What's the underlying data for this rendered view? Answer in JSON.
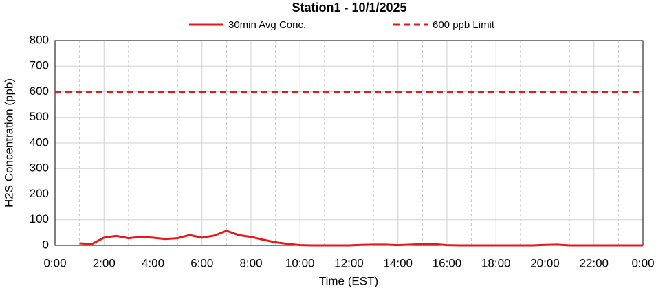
{
  "chart_data": {
    "type": "line",
    "title": "Station1  - 10/1/2025",
    "x_label": "Time (EST)",
    "y_label": "H2S Concentration (ppb)",
    "series": [
      {
        "name": "30min Avg Conc.",
        "color": "#e31a1c",
        "line_style": "solid",
        "x": [
          1,
          1.5,
          2,
          2.5,
          3,
          3.5,
          4,
          4.5,
          5,
          5.5,
          6,
          6.5,
          7,
          7.5,
          8,
          8.5,
          9,
          9.5,
          10,
          10.5,
          11,
          11.5,
          12,
          12.5,
          13,
          13.5,
          14,
          14.5,
          15,
          15.5,
          16,
          16.5,
          17,
          17.5,
          18,
          18.5,
          19,
          19.5,
          20,
          20.5,
          21,
          21.5,
          22,
          22.5,
          23,
          23.5,
          24
        ],
        "values": [
          8,
          5,
          30,
          37,
          28,
          33,
          30,
          25,
          28,
          40,
          30,
          38,
          57,
          40,
          33,
          22,
          12,
          6,
          1,
          0,
          0,
          0,
          0,
          2,
          3,
          3,
          1,
          3,
          5,
          5,
          1,
          0,
          0,
          0,
          0,
          0,
          0,
          0,
          2,
          3,
          0,
          0,
          0,
          0,
          0,
          0,
          0
        ]
      },
      {
        "name": "600 ppb Limit",
        "color": "#e31a1c",
        "line_style": "dashed",
        "x": [
          0,
          24
        ],
        "values": [
          600,
          600
        ]
      }
    ],
    "xlim": [
      0,
      24
    ],
    "xticks": [
      {
        "value": 0,
        "label": "0:00"
      },
      {
        "value": 2,
        "label": "2:00"
      },
      {
        "value": 4,
        "label": "4:00"
      },
      {
        "value": 6,
        "label": "6:00"
      },
      {
        "value": 8,
        "label": "8:00"
      },
      {
        "value": 10,
        "label": "10:00"
      },
      {
        "value": 12,
        "label": "12:00"
      },
      {
        "value": 14,
        "label": "14:00"
      },
      {
        "value": 16,
        "label": "16:00"
      },
      {
        "value": 18,
        "label": "18:00"
      },
      {
        "value": 20,
        "label": "20:00"
      },
      {
        "value": 22,
        "label": "22:00"
      },
      {
        "value": 24,
        "label": "0:00"
      }
    ],
    "ylim": [
      0,
      800
    ],
    "yticks": [
      0,
      100,
      200,
      300,
      400,
      500,
      600,
      700,
      800
    ],
    "grid": true,
    "legend_position": "top"
  }
}
